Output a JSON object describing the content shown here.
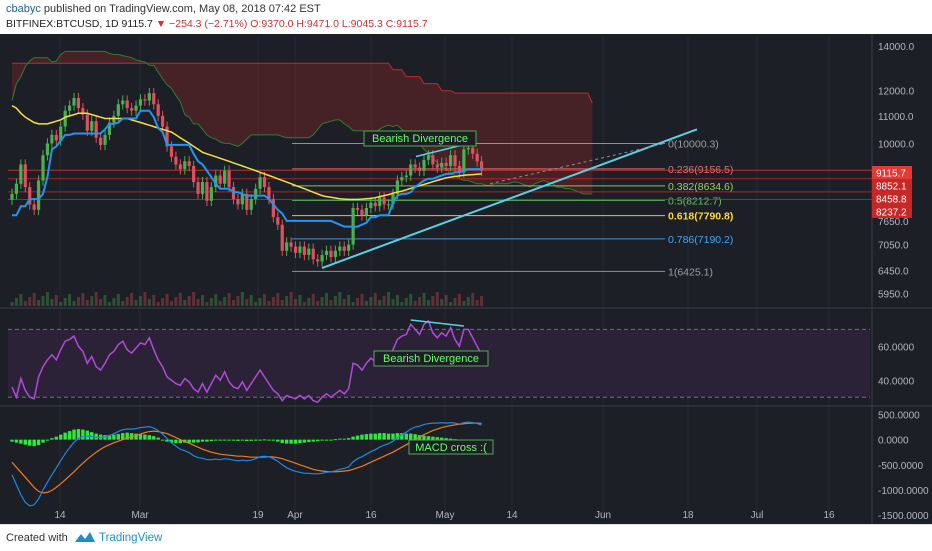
{
  "header": {
    "publisher": "cbabyc",
    "published_text": " published on TradingView.com, May 08, 2018 07:42 EST",
    "symbol": "BITFINEX:BTCUSD, 1D",
    "last": "9115.7",
    "change": "▼ −254.3 (−2.71%)",
    "ohlc": "O:9370.0 H:9471.0 L:9045.3 C:9115.7"
  },
  "footer": {
    "created_with": "Created with",
    "brand": "TradingView"
  },
  "colors": {
    "background": "#1c1f26",
    "rsi_band": "#2c2238",
    "up_candle": "#4caf50",
    "down_candle": "#e0515f",
    "baseline": "#2196f3",
    "ma": "#f5e03c",
    "trendline": "#5ad0e8",
    "rsi": "#b04bd8",
    "macd_hist": "#2ee83a",
    "macd_line": "#1e88e5",
    "signal_line": "#f07b1e"
  },
  "chart_data": [
    {
      "type": "candlestick",
      "pane": "price",
      "ylim": [
        5700,
        14500
      ],
      "y_scale": "log",
      "y_ticks": [
        "14000.0",
        "12000.0",
        "11000.0",
        "10000.0",
        "7650.0",
        "7050.0",
        "6450.0",
        "5950.0"
      ],
      "x_ticks": [
        "14",
        "Mar",
        "19",
        "Apr",
        "16",
        "May",
        "14",
        "Jun",
        "18",
        "Jul",
        "16"
      ],
      "price_tags": [
        {
          "label": "9115.7",
          "value": 9115.7
        },
        {
          "label": "8852.1",
          "value": 8852.1
        },
        {
          "label": "8458.8",
          "value": 8458.8
        },
        {
          "label": "8237.2",
          "value": 8237.2
        }
      ],
      "fibonacci": [
        {
          "label": "0(10000.3)",
          "value": 10000.3
        },
        {
          "label": "0.236(9156.5)",
          "value": 9156.5
        },
        {
          "label": "0.382(8634.6)",
          "value": 8634.6
        },
        {
          "label": "0.5(8212.7)",
          "value": 8212.7
        },
        {
          "label": "0.618(7790.8)",
          "value": 7790.8
        },
        {
          "label": "0.786(7190.2)",
          "value": 7190.2
        },
        {
          "label": "1(6425.1)",
          "value": 6425.1
        }
      ],
      "annotations": [
        {
          "label": "Bearish Divergence"
        }
      ],
      "closes": [
        8400,
        8700,
        9300,
        8600,
        8100,
        7950,
        8800,
        9600,
        10000,
        10300,
        10100,
        10600,
        11200,
        11400,
        11700,
        11300,
        11050,
        10450,
        10800,
        10200,
        9950,
        10300,
        10750,
        11000,
        11450,
        11600,
        11300,
        11200,
        11400,
        11650,
        11600,
        11900,
        11450,
        11000,
        10600,
        9900,
        9550,
        9300,
        9150,
        9400,
        9250,
        8750,
        8400,
        8750,
        8200,
        8600,
        8950,
        8700,
        9100,
        8600,
        8250,
        8100,
        8400,
        7950,
        8250,
        8550,
        8900,
        8600,
        8250,
        7750,
        7550,
        6900,
        7100,
        7000,
        6850,
        7000,
        6800,
        6950,
        6700,
        6650,
        6800,
        6900,
        6750,
        6900,
        7000,
        6900,
        7050,
        8000,
        7950,
        7800,
        8000,
        8150,
        8050,
        8300,
        8100,
        8100,
        8400,
        8800,
        8900,
        8950,
        9300,
        9200,
        9100,
        9450,
        9600,
        9300,
        9200,
        9350,
        9250,
        9600,
        9250,
        9050,
        9800,
        9850,
        9650,
        9400,
        9100
      ],
      "baseline": [
        7800,
        7800,
        8050,
        8050,
        8250,
        8250,
        8250,
        8400,
        8900,
        9800,
        9900,
        10100,
        10300,
        10300,
        10350,
        10350,
        10350,
        10350,
        10350,
        10350,
        10350,
        10500,
        10700,
        10700,
        10750,
        10900,
        10900,
        10900,
        10900,
        11200,
        11200,
        11200,
        10950,
        10550,
        10400,
        9950,
        9950,
        9950,
        9950,
        9950,
        9950,
        9650,
        9400,
        9300,
        9100,
        8900,
        8700,
        8550,
        8550,
        8550,
        8450,
        8450,
        8400,
        8350,
        8350,
        8350,
        8350,
        8350,
        8250,
        8100,
        7950,
        7850,
        7650,
        7650,
        7650,
        7650,
        7650,
        7650,
        7650,
        7650,
        7650,
        7650,
        7650,
        7600,
        7550,
        7500,
        7500,
        7500,
        7500,
        7550,
        7600,
        7750,
        7750,
        7800,
        7800,
        7800,
        8150,
        8350,
        8400,
        8400,
        8450,
        8600,
        8700,
        8800,
        8850,
        8850,
        8900,
        8950,
        9000,
        9000,
        9050,
        9050,
        9100,
        9150,
        9150,
        9150,
        9150
      ],
      "moving_average": [
        11400,
        11300,
        11100,
        10950,
        10850,
        10750,
        10700,
        10700,
        10700,
        10750,
        10800,
        10850,
        10950,
        11000,
        11050,
        11100,
        11100,
        11100,
        11050,
        11000,
        10950,
        10900,
        10900,
        10900,
        10900,
        10900,
        10900,
        10850,
        10800,
        10750,
        10700,
        10650,
        10600,
        10550,
        10500,
        10450,
        10400,
        10300,
        10200,
        10100,
        10000,
        9900,
        9800,
        9700,
        9650,
        9600,
        9550,
        9500,
        9450,
        9400,
        9350,
        9300,
        9250,
        9200,
        9150,
        9100,
        9050,
        9000,
        8950,
        8900,
        8850,
        8800,
        8750,
        8700,
        8650,
        8600,
        8550,
        8500,
        8450,
        8400,
        8350,
        8320,
        8300,
        8280,
        8260,
        8250,
        8240,
        8240,
        8240,
        8250,
        8260,
        8270,
        8290,
        8320,
        8350,
        8380,
        8420,
        8450,
        8480,
        8520,
        8560,
        8600,
        8640,
        8680,
        8720,
        8760,
        8800,
        8840,
        8880,
        8900,
        8920,
        8940,
        8960,
        8970,
        8980,
        8990,
        9000
      ],
      "cloud_a": [
        11600,
        12300,
        12600,
        13050,
        13300,
        13450,
        13450,
        13450,
        13450,
        13250,
        13300,
        13600,
        13750,
        13750,
        13750,
        13750,
        13750,
        13750,
        13750,
        13750,
        13750,
        13750,
        13650,
        13600,
        13600,
        13550,
        13500,
        13450,
        13350,
        13300,
        13250,
        13100,
        13100,
        12800,
        12500,
        12250,
        12100,
        11800,
        11550,
        11050,
        10950,
        10700,
        10700,
        10500,
        10300,
        10200,
        10150,
        10050,
        10000,
        10000,
        9950,
        9900,
        10000,
        10150,
        10300,
        10300,
        10300,
        10300,
        10300,
        10300,
        10300,
        10250,
        10200,
        10200,
        10200,
        10200,
        10200,
        10200,
        10300,
        10500,
        10700,
        10750,
        10800,
        10850,
        10850,
        10700,
        10600,
        10450,
        10450,
        10450,
        10400,
        10350,
        10400,
        10500,
        10600,
        10650,
        10600,
        10650,
        10500,
        10300,
        10150,
        10050,
        10000,
        9800,
        9650,
        9500,
        9350,
        9250,
        9150,
        9000,
        8950,
        8850,
        8800,
        8800,
        8750,
        8700,
        8700,
        8650,
        8650,
        8700,
        8700,
        8700,
        8700,
        8750,
        8750,
        8700,
        8650,
        8600,
        8700,
        8750,
        8800,
        8750,
        8700,
        8600,
        8600,
        8550,
        8550,
        8500,
        8450,
        8400,
        8400,
        8400
      ],
      "cloud_b": [
        13200,
        13200,
        13200,
        13200,
        13200,
        13200,
        13200,
        13200,
        13200,
        13200,
        13200,
        13200,
        13200,
        13200,
        13200,
        13200,
        13200,
        13200,
        13200,
        13200,
        13200,
        13200,
        13200,
        13200,
        13200,
        13200,
        13200,
        13200,
        13200,
        13200,
        13200,
        13200,
        13200,
        13200,
        13200,
        13200,
        13200,
        13200,
        13200,
        13200,
        13200,
        13200,
        13200,
        13200,
        13200,
        13200,
        13200,
        13200,
        13200,
        13200,
        13200,
        13200,
        13200,
        13200,
        13200,
        13200,
        13200,
        13200,
        13200,
        13200,
        13200,
        13200,
        13200,
        13200,
        13200,
        13200,
        13200,
        13200,
        13200,
        13200,
        13200,
        13200,
        13200,
        13200,
        13200,
        13200,
        13200,
        13200,
        13200,
        13200,
        13200,
        13200,
        13200,
        13200,
        13200,
        13200,
        12900,
        12900,
        12900,
        12600,
        12600,
        12600,
        12600,
        12300,
        12300,
        12300,
        12300,
        12000,
        12000,
        12000,
        11900,
        11900,
        11900,
        11900,
        11900,
        11900,
        11900,
        11900,
        11900,
        11900,
        11900,
        11900,
        11900,
        11900,
        11900,
        11900,
        11900,
        11900,
        11900,
        11900,
        11900,
        11900,
        11900,
        11900,
        11900,
        11900,
        11900,
        11900,
        11900,
        11900,
        11900,
        11500
      ]
    },
    {
      "type": "line",
      "pane": "rsi",
      "ylim": [
        26,
        82
      ],
      "y_ticks": [
        "60.0000",
        "40.0000"
      ],
      "bands": [
        70,
        30
      ],
      "annotations": [
        {
          "label": "Bearish Divergence"
        }
      ],
      "values": [
        36,
        30,
        41,
        34,
        30,
        29,
        42,
        48,
        52,
        55,
        52,
        58,
        63,
        64,
        66,
        60,
        57,
        50,
        54,
        48,
        46,
        50,
        55,
        57,
        61,
        63,
        58,
        56,
        59,
        62,
        61,
        65,
        58,
        52,
        48,
        42,
        40,
        38,
        37,
        41,
        39,
        35,
        33,
        38,
        33,
        38,
        43,
        40,
        45,
        39,
        36,
        35,
        39,
        34,
        38,
        42,
        46,
        42,
        38,
        34,
        32,
        28,
        31,
        30,
        29,
        31,
        29,
        31,
        28,
        27,
        30,
        32,
        30,
        32,
        34,
        32,
        35,
        50,
        49,
        46,
        50,
        53,
        51,
        56,
        52,
        52,
        58,
        64,
        66,
        67,
        73,
        70,
        67,
        73,
        75,
        68,
        65,
        68,
        66,
        71,
        64,
        60,
        70,
        70,
        65,
        60,
        55
      ]
    },
    {
      "type": "bar",
      "pane": "macd",
      "ylim": [
        -1600,
        650
      ],
      "y_ticks": [
        "500.0000",
        "0.0000",
        "-500.0000",
        "-1000.0000",
        "-1500.0000"
      ],
      "annotations": [
        {
          "label": "MACD cross :("
        }
      ],
      "histogram": [
        -40,
        -60,
        -80,
        -100,
        -120,
        -130,
        -110,
        -60,
        -20,
        30,
        60,
        100,
        140,
        170,
        200,
        210,
        200,
        180,
        150,
        120,
        100,
        90,
        90,
        100,
        110,
        130,
        140,
        130,
        120,
        110,
        100,
        90,
        70,
        40,
        0,
        -40,
        -60,
        -70,
        -70,
        -60,
        -60,
        -60,
        -55,
        -40,
        -40,
        -30,
        -20,
        -20,
        -10,
        -20,
        -20,
        -25,
        -20,
        -30,
        -25,
        -15,
        0,
        5,
        0,
        -20,
        -40,
        -70,
        -80,
        -80,
        -80,
        -70,
        -60,
        -50,
        -40,
        -30,
        -20,
        -10,
        0,
        10,
        20,
        20,
        30,
        60,
        80,
        100,
        110,
        120,
        120,
        130,
        130,
        120,
        120,
        130,
        130,
        120,
        120,
        110,
        90,
        80,
        70,
        60,
        50,
        40,
        30,
        20,
        10,
        0,
        -10,
        -10,
        -20,
        -20,
        -30
      ],
      "macd_line": [
        -700,
        -900,
        -1100,
        -1250,
        -1320,
        -1300,
        -1180,
        -1000,
        -850,
        -700,
        -560,
        -420,
        -280,
        -160,
        -50,
        20,
        60,
        70,
        60,
        50,
        40,
        50,
        80,
        120,
        160,
        200,
        210,
        210,
        220,
        240,
        250,
        260,
        230,
        180,
        110,
        20,
        -60,
        -130,
        -190,
        -220,
        -260,
        -320,
        -360,
        -370,
        -400,
        -400,
        -390,
        -400,
        -380,
        -390,
        -410,
        -420,
        -410,
        -420,
        -410,
        -380,
        -340,
        -330,
        -340,
        -380,
        -430,
        -500,
        -560,
        -600,
        -630,
        -650,
        -670,
        -670,
        -680,
        -680,
        -670,
        -650,
        -640,
        -620,
        -590,
        -570,
        -540,
        -440,
        -380,
        -340,
        -290,
        -240,
        -200,
        -150,
        -110,
        -80,
        -30,
        40,
        100,
        150,
        210,
        250,
        270,
        300,
        320,
        330,
        330,
        340,
        330,
        340,
        330,
        310,
        340,
        350,
        340,
        320,
        290
      ],
      "signal_line": [
        -450,
        -550,
        -650,
        -750,
        -850,
        -950,
        -1030,
        -1060,
        -1050,
        -1010,
        -950,
        -880,
        -800,
        -720,
        -640,
        -550,
        -470,
        -390,
        -320,
        -250,
        -190,
        -140,
        -100,
        -60,
        -30,
        0,
        30,
        60,
        80,
        110,
        140,
        160,
        170,
        160,
        140,
        120,
        80,
        40,
        0,
        -40,
        -70,
        -110,
        -150,
        -190,
        -220,
        -250,
        -270,
        -290,
        -300,
        -310,
        -320,
        -330,
        -330,
        -340,
        -350,
        -350,
        -350,
        -345,
        -340,
        -345,
        -360,
        -380,
        -410,
        -440,
        -470,
        -500,
        -530,
        -560,
        -590,
        -610,
        -625,
        -635,
        -640,
        -640,
        -635,
        -625,
        -615,
        -590,
        -560,
        -530,
        -490,
        -450,
        -410,
        -370,
        -330,
        -290,
        -250,
        -200,
        -150,
        -100,
        -50,
        0,
        50,
        100,
        140,
        180,
        210,
        240,
        260,
        280,
        295,
        305,
        315,
        325,
        330,
        330,
        325
      ]
    }
  ]
}
